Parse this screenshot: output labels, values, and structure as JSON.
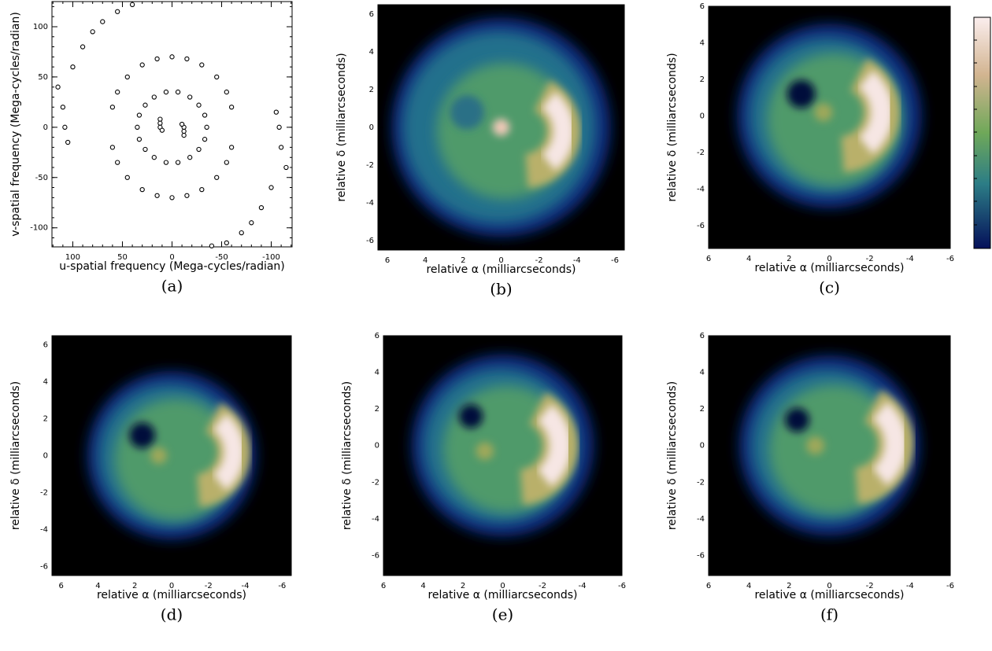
{
  "chart_data": [
    {
      "type": "scatter",
      "caption": "(a)",
      "xlabel": "u-spatial frequency (Mega-cycles/radian)",
      "ylabel": "v-spatial frequency (Mega-cycles/radian)",
      "xlim": [
        121,
        -121
      ],
      "ylim": [
        -119,
        125
      ],
      "xticks": [
        100,
        50,
        0,
        -50,
        -100
      ],
      "yticks": [
        100,
        50,
        0,
        -50,
        -100
      ],
      "x": [
        12,
        12,
        12,
        10,
        -12,
        -12,
        -12,
        -10,
        35,
        33,
        27,
        18,
        6,
        -6,
        -18,
        -27,
        -33,
        -35,
        -33,
        -27,
        -18,
        -6,
        6,
        18,
        27,
        33,
        60,
        55,
        45,
        30,
        15,
        0,
        -15,
        -30,
        -45,
        -55,
        -60,
        -60,
        -55,
        -45,
        -30,
        -15,
        0,
        15,
        30,
        45,
        55,
        60,
        115,
        110,
        108,
        105,
        100,
        90,
        80,
        70,
        55,
        40,
        -115,
        -110,
        -108,
        -105,
        -100,
        -90,
        -80,
        -70,
        -55,
        -40
      ],
      "values": [
        8,
        4,
        0,
        -3,
        -8,
        -4,
        0,
        3,
        0,
        12,
        22,
        30,
        35,
        35,
        30,
        22,
        12,
        0,
        -12,
        -22,
        -30,
        -35,
        -35,
        -30,
        -22,
        -12,
        20,
        35,
        50,
        62,
        68,
        70,
        68,
        62,
        50,
        35,
        20,
        -20,
        -35,
        -50,
        -62,
        -68,
        -70,
        -68,
        -62,
        -50,
        -35,
        -20,
        40,
        20,
        0,
        -15,
        60,
        80,
        95,
        105,
        115,
        122,
        -40,
        -20,
        0,
        15,
        -60,
        -80,
        -95,
        -105,
        -115,
        -118
      ]
    },
    {
      "type": "image",
      "caption": "(b)",
      "xlabel": "relative α (milliarcseconds)",
      "ylabel": "relative δ (milliarcseconds)",
      "xlim": [
        6.5,
        -6.5
      ],
      "ylim": [
        -6.5,
        6.5
      ],
      "xticks": [
        6,
        4,
        2,
        0,
        -2,
        -4,
        -6
      ],
      "yticks": [
        6,
        4,
        2,
        0,
        -2,
        -4,
        -6
      ]
    },
    {
      "type": "image",
      "caption": "(c)",
      "xlabel": "relative α (milliarcseconds)",
      "ylabel": "relative δ (milliarcseconds)",
      "xlim": [
        6,
        -6
      ],
      "ylim": [
        -7.25,
        6
      ],
      "xticks": [
        6,
        4,
        2,
        0,
        -2,
        -4,
        -6
      ],
      "yticks": [
        6,
        4,
        2,
        0,
        -2,
        -4,
        -6
      ]
    },
    {
      "type": "image",
      "caption": "(d)",
      "xlabel": "relative α (milliarcseconds)",
      "ylabel": "relative δ (milliarcseconds)",
      "xlim": [
        6.5,
        -6.5
      ],
      "ylim": [
        -6.5,
        6.5
      ],
      "xticks": [
        6,
        4,
        2,
        0,
        -2,
        -4,
        -6
      ],
      "yticks": [
        6,
        4,
        2,
        0,
        -2,
        -4,
        -6
      ]
    },
    {
      "type": "image",
      "caption": "(e)",
      "xlabel": "relative α (milliarcseconds)",
      "ylabel": "relative δ (milliarcseconds)",
      "xlim": [
        6,
        -6
      ],
      "ylim": [
        -7.1,
        6
      ],
      "xticks": [
        6,
        4,
        2,
        0,
        -2,
        -4,
        -6
      ],
      "yticks": [
        6,
        4,
        2,
        0,
        -2,
        -4,
        -6
      ]
    },
    {
      "type": "image",
      "caption": "(f)",
      "xlabel": "relative α (milliarcseconds)",
      "ylabel": "relative δ (milliarcseconds)",
      "xlim": [
        6,
        -6
      ],
      "ylim": [
        -7.1,
        6
      ],
      "xticks": [
        6,
        4,
        2,
        0,
        -2,
        -4,
        -6
      ],
      "yticks": [
        6,
        4,
        2,
        0,
        -2,
        -4,
        -6
      ]
    }
  ]
}
